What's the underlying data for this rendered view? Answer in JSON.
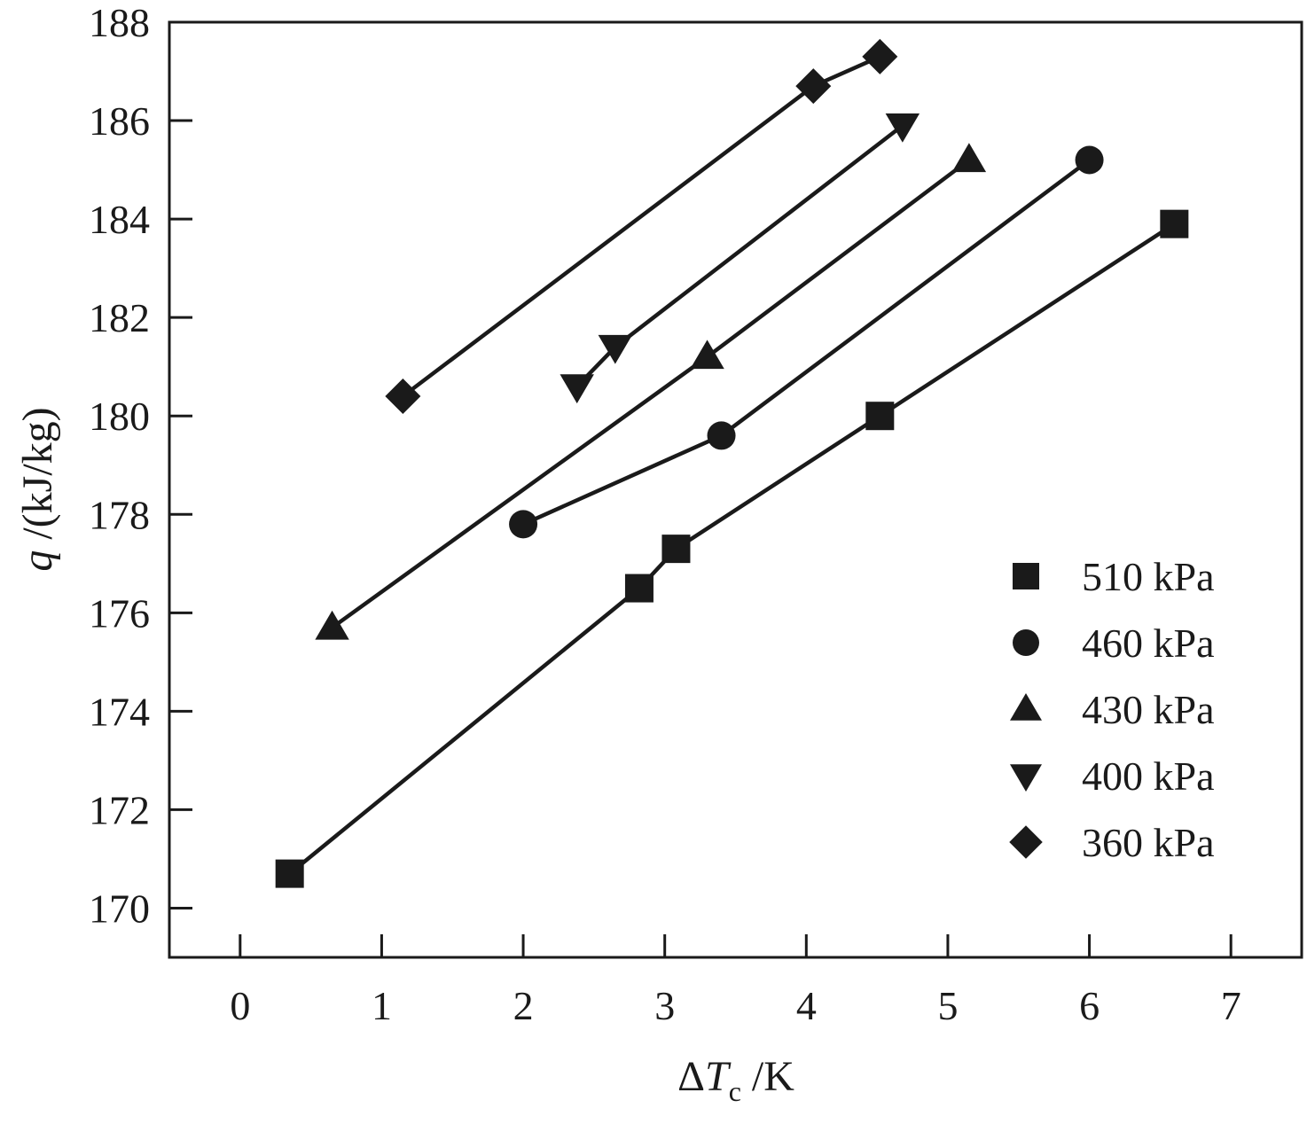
{
  "chart_data": {
    "type": "line",
    "xlabel_parts": {
      "delta": "Δ",
      "var": "T",
      "sub": "c",
      "unit": " /K"
    },
    "ylabel_parts": {
      "var": "q",
      "unit": " /(kJ/kg)"
    },
    "xlim": [
      -0.5,
      7.5
    ],
    "ylim": [
      169,
      188
    ],
    "xticks": [
      0,
      1,
      2,
      3,
      4,
      5,
      6,
      7
    ],
    "yticks": [
      170,
      172,
      174,
      176,
      178,
      180,
      182,
      184,
      186,
      188
    ],
    "grid": false,
    "legend_position": "bottom-right",
    "series": [
      {
        "name": "510 kPa",
        "marker": "square",
        "x": [
          0.35,
          2.82,
          3.08,
          4.52,
          6.6
        ],
        "y": [
          170.7,
          176.5,
          177.3,
          180.0,
          183.9
        ]
      },
      {
        "name": "460 kPa",
        "marker": "circle",
        "x": [
          2.0,
          3.4,
          6.0
        ],
        "y": [
          177.8,
          179.6,
          185.2
        ]
      },
      {
        "name": "430 kPa",
        "marker": "triangle-up",
        "x": [
          0.65,
          3.3,
          5.15
        ],
        "y": [
          175.7,
          181.2,
          185.2
        ]
      },
      {
        "name": "400 kPa",
        "marker": "triangle-down",
        "x": [
          2.38,
          2.65,
          4.68
        ],
        "y": [
          180.6,
          181.4,
          185.9
        ]
      },
      {
        "name": "360 kPa",
        "marker": "diamond",
        "x": [
          1.15,
          4.05,
          4.52
        ],
        "y": [
          180.4,
          186.7,
          187.3
        ]
      }
    ]
  }
}
